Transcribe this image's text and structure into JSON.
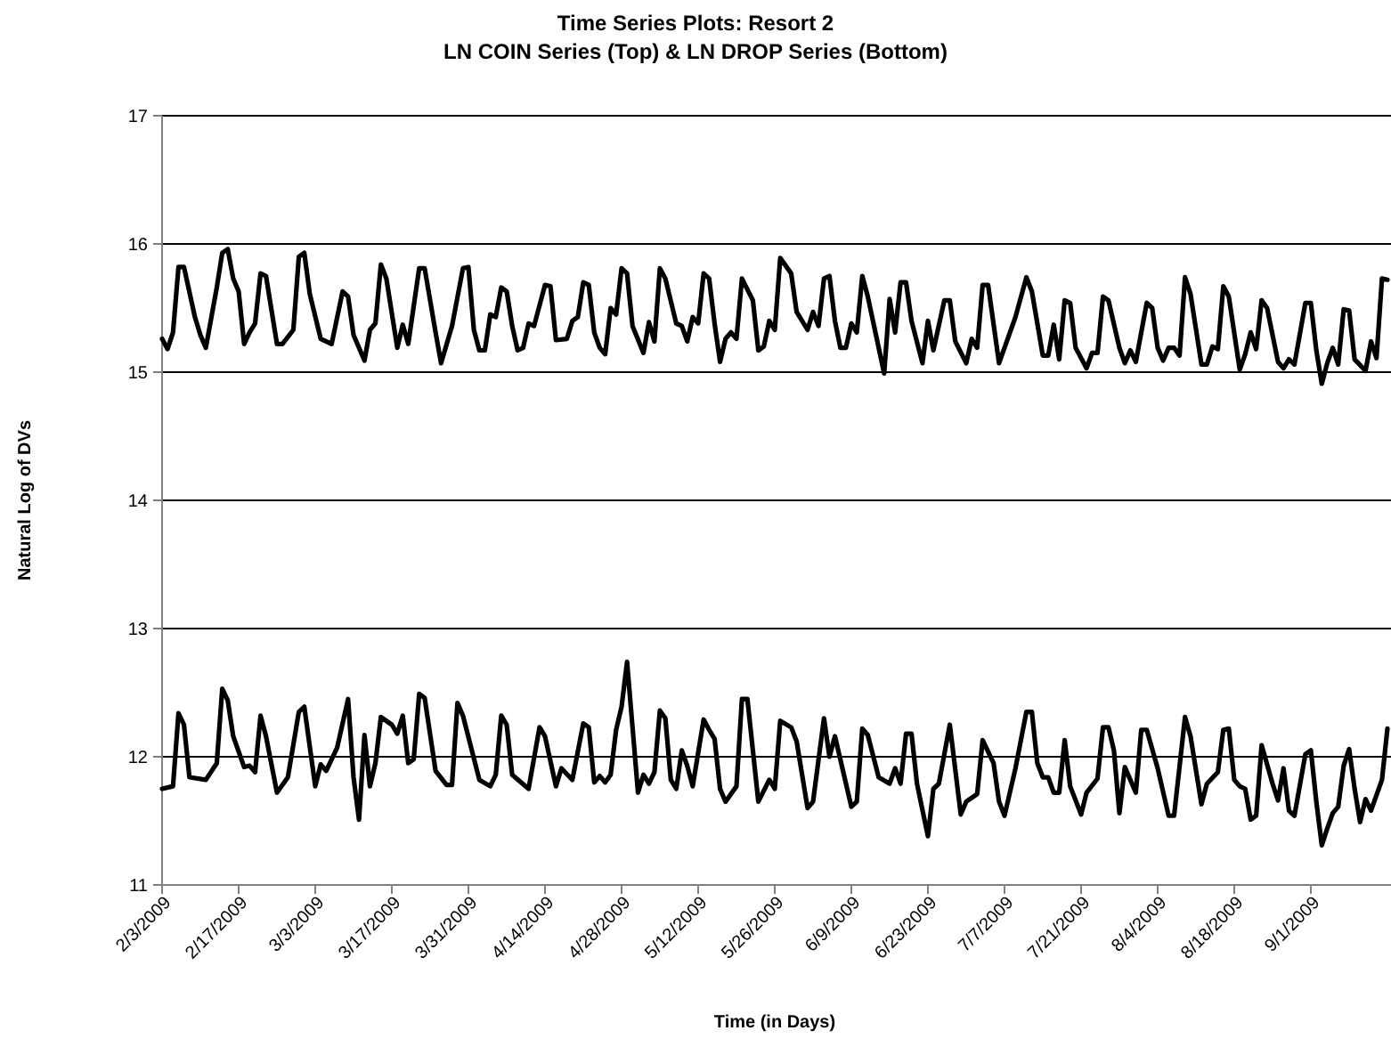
{
  "chart_data": {
    "type": "line",
    "title": "Time Series Plots: Resort 2",
    "subtitle": "LN COIN Series (Top) & LN DROP Series (Bottom)",
    "xlabel": "Time (in Days)",
    "ylabel": "Natural Log of DVs",
    "xlim": [
      "2009-02-03",
      "2009-09-15"
    ],
    "xticks": [
      {
        "value": "2009-02-03",
        "label": "2/3/2009"
      },
      {
        "value": "2009-02-17",
        "label": "2/17/2009"
      },
      {
        "value": "2009-03-03",
        "label": "3/3/2009"
      },
      {
        "value": "2009-03-17",
        "label": "3/17/2009"
      },
      {
        "value": "2009-03-31",
        "label": "3/31/2009"
      },
      {
        "value": "2009-04-14",
        "label": "4/14/2009"
      },
      {
        "value": "2009-04-28",
        "label": "4/28/2009"
      },
      {
        "value": "2009-05-12",
        "label": "5/12/2009"
      },
      {
        "value": "2009-05-26",
        "label": "5/26/2009"
      },
      {
        "value": "2009-06-09",
        "label": "6/9/2009"
      },
      {
        "value": "2009-06-23",
        "label": "6/23/2009"
      },
      {
        "value": "2009-07-07",
        "label": "7/7/2009"
      },
      {
        "value": "2009-07-21",
        "label": "7/21/2009"
      },
      {
        "value": "2009-08-04",
        "label": "8/4/2009"
      },
      {
        "value": "2009-08-18",
        "label": "8/18/2009"
      },
      {
        "value": "2009-09-01",
        "label": "9/1/2009"
      }
    ],
    "ylim": [
      11,
      17
    ],
    "yticks": [
      11,
      12,
      13,
      14,
      15,
      16,
      17
    ],
    "grid": "y",
    "marker": "none",
    "line_style": "solid",
    "series": [
      {
        "color": "#000000",
        "x": [
          "2009-02-03",
          "2009-02-04",
          "2009-02-05",
          "2009-02-06",
          "2009-02-07",
          "2009-02-09",
          "2009-02-10",
          "2009-02-11",
          "2009-02-13",
          "2009-02-14",
          "2009-02-15",
          "2009-02-16",
          "2009-02-17",
          "2009-02-18",
          "2009-02-19",
          "2009-02-20",
          "2009-02-21",
          "2009-02-22",
          "2009-02-24",
          "2009-02-25",
          "2009-02-27",
          "2009-02-28",
          "2009-03-01",
          "2009-03-02",
          "2009-03-04",
          "2009-03-06",
          "2009-03-08",
          "2009-03-09",
          "2009-03-10",
          "2009-03-12",
          "2009-03-13",
          "2009-03-14",
          "2009-03-15",
          "2009-03-16",
          "2009-03-18",
          "2009-03-19",
          "2009-03-20",
          "2009-03-22",
          "2009-03-23",
          "2009-03-25",
          "2009-03-26",
          "2009-03-28",
          "2009-03-30",
          "2009-03-31",
          "2009-04-01",
          "2009-04-02",
          "2009-04-03",
          "2009-04-04",
          "2009-04-05",
          "2009-04-06",
          "2009-04-07",
          "2009-04-08",
          "2009-04-09",
          "2009-04-10",
          "2009-04-11",
          "2009-04-12",
          "2009-04-14",
          "2009-04-15",
          "2009-04-16",
          "2009-04-18",
          "2009-04-19",
          "2009-04-20",
          "2009-04-21",
          "2009-04-22",
          "2009-04-23",
          "2009-04-24",
          "2009-04-25",
          "2009-04-26",
          "2009-04-27",
          "2009-04-28",
          "2009-04-29",
          "2009-04-30",
          "2009-05-02",
          "2009-05-03",
          "2009-05-04",
          "2009-05-05",
          "2009-05-06",
          "2009-05-08",
          "2009-05-09",
          "2009-05-10",
          "2009-05-11",
          "2009-05-12",
          "2009-05-13",
          "2009-05-14",
          "2009-05-15",
          "2009-05-16",
          "2009-05-17",
          "2009-05-18",
          "2009-05-19",
          "2009-05-20",
          "2009-05-22",
          "2009-05-23",
          "2009-05-24",
          "2009-05-25",
          "2009-05-26",
          "2009-05-27",
          "2009-05-29",
          "2009-05-30",
          "2009-06-01",
          "2009-06-02",
          "2009-06-03",
          "2009-06-04",
          "2009-06-05",
          "2009-06-06",
          "2009-06-07",
          "2009-06-08",
          "2009-06-09",
          "2009-06-10",
          "2009-06-11",
          "2009-06-12",
          "2009-06-14",
          "2009-06-15",
          "2009-06-16",
          "2009-06-17",
          "2009-06-18",
          "2009-06-19",
          "2009-06-20",
          "2009-06-22",
          "2009-06-23",
          "2009-06-24",
          "2009-06-26",
          "2009-06-27",
          "2009-06-28",
          "2009-06-30",
          "2009-07-01",
          "2009-07-02",
          "2009-07-03",
          "2009-07-04",
          "2009-07-06",
          "2009-07-09",
          "2009-07-11",
          "2009-07-12",
          "2009-07-14",
          "2009-07-15",
          "2009-07-16",
          "2009-07-17",
          "2009-07-18",
          "2009-07-19",
          "2009-07-20",
          "2009-07-22",
          "2009-07-23",
          "2009-07-24",
          "2009-07-25",
          "2009-07-26",
          "2009-07-28",
          "2009-07-29",
          "2009-07-30",
          "2009-07-31",
          "2009-08-02",
          "2009-08-03",
          "2009-08-04",
          "2009-08-05",
          "2009-08-06",
          "2009-08-07",
          "2009-08-08",
          "2009-08-09",
          "2009-08-10",
          "2009-08-12",
          "2009-08-13",
          "2009-08-14",
          "2009-08-15",
          "2009-08-16",
          "2009-08-17",
          "2009-08-19",
          "2009-08-20",
          "2009-08-21",
          "2009-08-22",
          "2009-08-23",
          "2009-08-24",
          "2009-08-26",
          "2009-08-27",
          "2009-08-28",
          "2009-08-29",
          "2009-08-31",
          "2009-09-01",
          "2009-09-02",
          "2009-09-03",
          "2009-09-04",
          "2009-09-05",
          "2009-09-06",
          "2009-09-07",
          "2009-09-08",
          "2009-09-09",
          "2009-09-11",
          "2009-09-12",
          "2009-09-13",
          "2009-09-14",
          "2009-09-15"
        ],
        "values": [
          15.26,
          15.18,
          15.31,
          15.82,
          15.82,
          15.43,
          15.29,
          15.19,
          15.66,
          15.93,
          15.96,
          15.73,
          15.63,
          15.22,
          15.31,
          15.38,
          15.77,
          15.75,
          15.22,
          15.22,
          15.33,
          15.9,
          15.93,
          15.61,
          15.26,
          15.22,
          15.63,
          15.59,
          15.29,
          15.09,
          15.33,
          15.38,
          15.84,
          15.73,
          15.19,
          15.37,
          15.22,
          15.81,
          15.81,
          15.31,
          15.07,
          15.36,
          15.81,
          15.82,
          15.33,
          15.17,
          15.17,
          15.45,
          15.43,
          15.66,
          15.63,
          15.36,
          15.17,
          15.19,
          15.38,
          15.36,
          15.68,
          15.67,
          15.25,
          15.26,
          15.4,
          15.43,
          15.7,
          15.68,
          15.31,
          15.19,
          15.14,
          15.5,
          15.45,
          15.81,
          15.77,
          15.36,
          15.15,
          15.39,
          15.24,
          15.81,
          15.73,
          15.38,
          15.36,
          15.24,
          15.43,
          15.38,
          15.77,
          15.73,
          15.38,
          15.08,
          15.26,
          15.31,
          15.26,
          15.73,
          15.56,
          15.17,
          15.2,
          15.4,
          15.33,
          15.89,
          15.77,
          15.47,
          15.33,
          15.47,
          15.36,
          15.73,
          15.75,
          15.4,
          15.19,
          15.19,
          15.38,
          15.31,
          15.75,
          15.59,
          15.19,
          14.99,
          15.57,
          15.31,
          15.7,
          15.7,
          15.4,
          15.07,
          15.4,
          15.17,
          15.56,
          15.56,
          15.24,
          15.07,
          15.26,
          15.19,
          15.68,
          15.68,
          15.07,
          15.43,
          15.74,
          15.63,
          15.13,
          15.13,
          15.37,
          15.1,
          15.56,
          15.54,
          15.19,
          15.03,
          15.15,
          15.15,
          15.59,
          15.56,
          15.19,
          15.07,
          15.17,
          15.08,
          15.54,
          15.5,
          15.19,
          15.09,
          15.19,
          15.19,
          15.13,
          15.74,
          15.61,
          15.06,
          15.06,
          15.2,
          15.18,
          15.67,
          15.59,
          15.02,
          15.14,
          15.31,
          15.18,
          15.56,
          15.5,
          15.08,
          15.03,
          15.1,
          15.06,
          15.54,
          15.54,
          15.17,
          14.91,
          15.07,
          15.19,
          15.06,
          15.49,
          15.48,
          15.1,
          15.01,
          15.24,
          15.11,
          15.73,
          15.72
        ]
      },
      {
        "color": "#000000",
        "x": [
          "2009-02-03",
          "2009-02-05",
          "2009-02-06",
          "2009-02-07",
          "2009-02-08",
          "2009-02-11",
          "2009-02-13",
          "2009-02-14",
          "2009-02-15",
          "2009-02-16",
          "2009-02-18",
          "2009-02-19",
          "2009-02-20",
          "2009-02-21",
          "2009-02-22",
          "2009-02-24",
          "2009-02-26",
          "2009-02-28",
          "2009-03-01",
          "2009-03-03",
          "2009-03-04",
          "2009-03-05",
          "2009-03-07",
          "2009-03-09",
          "2009-03-10",
          "2009-03-11",
          "2009-03-12",
          "2009-03-13",
          "2009-03-14",
          "2009-03-15",
          "2009-03-17",
          "2009-03-18",
          "2009-03-19",
          "2009-03-20",
          "2009-03-21",
          "2009-03-22",
          "2009-03-23",
          "2009-03-25",
          "2009-03-27",
          "2009-03-28",
          "2009-03-29",
          "2009-03-30",
          "2009-04-02",
          "2009-04-04",
          "2009-04-05",
          "2009-04-06",
          "2009-04-07",
          "2009-04-08",
          "2009-04-11",
          "2009-04-13",
          "2009-04-14",
          "2009-04-16",
          "2009-04-17",
          "2009-04-19",
          "2009-04-21",
          "2009-04-22",
          "2009-04-23",
          "2009-04-24",
          "2009-04-25",
          "2009-04-26",
          "2009-04-27",
          "2009-04-28",
          "2009-04-29",
          "2009-04-30",
          "2009-05-01",
          "2009-05-02",
          "2009-05-03",
          "2009-05-04",
          "2009-05-05",
          "2009-05-06",
          "2009-05-07",
          "2009-05-08",
          "2009-05-09",
          "2009-05-10",
          "2009-05-11",
          "2009-05-13",
          "2009-05-14",
          "2009-05-15",
          "2009-05-16",
          "2009-05-17",
          "2009-05-19",
          "2009-05-20",
          "2009-05-21",
          "2009-05-23",
          "2009-05-25",
          "2009-05-26",
          "2009-05-27",
          "2009-05-29",
          "2009-05-30",
          "2009-06-01",
          "2009-06-02",
          "2009-06-04",
          "2009-06-05",
          "2009-06-06",
          "2009-06-09",
          "2009-06-10",
          "2009-06-11",
          "2009-06-12",
          "2009-06-14",
          "2009-06-16",
          "2009-06-17",
          "2009-06-18",
          "2009-06-19",
          "2009-06-20",
          "2009-06-21",
          "2009-06-23",
          "2009-06-24",
          "2009-06-25",
          "2009-06-27",
          "2009-06-29",
          "2009-06-30",
          "2009-07-02",
          "2009-07-03",
          "2009-07-05",
          "2009-07-06",
          "2009-07-07",
          "2009-07-09",
          "2009-07-11",
          "2009-07-12",
          "2009-07-13",
          "2009-07-14",
          "2009-07-15",
          "2009-07-16",
          "2009-07-17",
          "2009-07-18",
          "2009-07-19",
          "2009-07-21",
          "2009-07-22",
          "2009-07-24",
          "2009-07-25",
          "2009-07-26",
          "2009-07-27",
          "2009-07-28",
          "2009-07-29",
          "2009-07-31",
          "2009-08-01",
          "2009-08-02",
          "2009-08-04",
          "2009-08-06",
          "2009-08-07",
          "2009-08-09",
          "2009-08-10",
          "2009-08-12",
          "2009-08-13",
          "2009-08-15",
          "2009-08-16",
          "2009-08-17",
          "2009-08-18",
          "2009-08-19",
          "2009-08-20",
          "2009-08-21",
          "2009-08-22",
          "2009-08-23",
          "2009-08-25",
          "2009-08-26",
          "2009-08-27",
          "2009-08-28",
          "2009-08-29",
          "2009-08-31",
          "2009-09-01",
          "2009-09-02",
          "2009-09-03",
          "2009-09-04",
          "2009-09-05",
          "2009-09-06",
          "2009-09-07",
          "2009-09-08",
          "2009-09-09",
          "2009-09-10",
          "2009-09-11",
          "2009-09-12",
          "2009-09-14",
          "2009-09-15"
        ],
        "values": [
          11.75,
          11.77,
          12.34,
          12.25,
          11.84,
          11.82,
          11.95,
          12.53,
          12.44,
          12.16,
          11.92,
          11.93,
          11.88,
          12.32,
          12.16,
          11.72,
          11.84,
          12.35,
          12.39,
          11.77,
          11.94,
          11.89,
          12.07,
          12.45,
          11.84,
          11.51,
          12.17,
          11.77,
          11.95,
          12.31,
          12.25,
          12.18,
          12.32,
          11.95,
          11.98,
          12.49,
          12.46,
          11.89,
          11.78,
          11.78,
          12.42,
          12.32,
          11.82,
          11.77,
          11.86,
          12.32,
          12.25,
          11.86,
          11.75,
          12.23,
          12.16,
          11.77,
          11.91,
          11.82,
          12.26,
          12.23,
          11.8,
          11.85,
          11.8,
          11.86,
          12.21,
          12.39,
          12.74,
          12.23,
          11.72,
          11.86,
          11.79,
          11.88,
          12.36,
          12.3,
          11.82,
          11.75,
          12.05,
          11.93,
          11.77,
          12.29,
          12.21,
          12.14,
          11.75,
          11.65,
          11.77,
          12.45,
          12.45,
          11.65,
          11.82,
          11.75,
          12.28,
          12.23,
          12.12,
          11.6,
          11.65,
          12.3,
          12.0,
          12.16,
          11.61,
          11.65,
          12.22,
          12.17,
          11.84,
          11.79,
          11.91,
          11.79,
          12.18,
          12.18,
          11.79,
          11.38,
          11.75,
          11.79,
          12.25,
          11.55,
          11.65,
          11.71,
          12.13,
          11.95,
          11.65,
          11.54,
          11.91,
          12.35,
          12.35,
          11.95,
          11.84,
          11.84,
          11.72,
          11.72,
          12.13,
          11.77,
          11.55,
          11.72,
          11.83,
          12.23,
          12.23,
          12.05,
          11.56,
          11.92,
          11.72,
          12.21,
          12.21,
          11.91,
          11.54,
          11.54,
          12.31,
          12.16,
          11.63,
          11.79,
          11.88,
          12.21,
          12.22,
          11.82,
          11.77,
          11.75,
          11.51,
          11.54,
          12.09,
          11.79,
          11.66,
          11.91,
          11.58,
          11.54,
          12.02,
          12.05,
          11.65,
          11.31,
          11.44,
          11.56,
          11.61,
          11.93,
          12.06,
          11.75,
          11.49,
          11.67,
          11.58,
          11.82,
          12.22
        ]
      }
    ]
  }
}
